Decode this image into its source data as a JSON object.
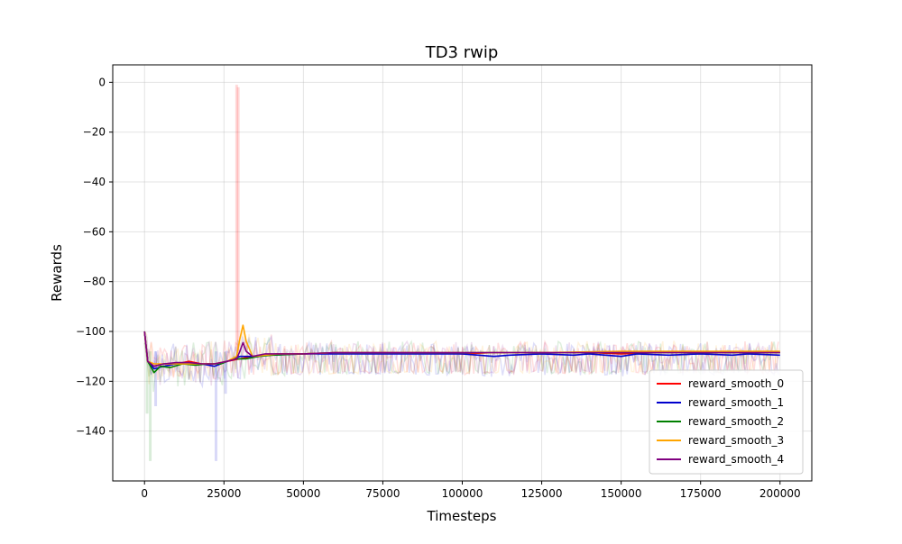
{
  "chart_data": {
    "type": "line",
    "title": "TD3 rwip",
    "xlabel": "Timesteps",
    "ylabel": "Rewards",
    "xlim": [
      -10000,
      210000
    ],
    "ylim": [
      -160,
      7
    ],
    "xticks": [
      0,
      25000,
      50000,
      75000,
      100000,
      125000,
      150000,
      175000,
      200000
    ],
    "xtick_labels": [
      "0",
      "25000",
      "50000",
      "75000",
      "100000",
      "125000",
      "150000",
      "175000",
      "200000"
    ],
    "yticks": [
      0,
      -20,
      -40,
      -60,
      -80,
      -100,
      -120,
      -140
    ],
    "ytick_labels": [
      "0",
      "−20",
      "−40",
      "−60",
      "−80",
      "−100",
      "−120",
      "−140"
    ],
    "grid": true,
    "legend_position": "lower-right",
    "series": [
      {
        "name": "reward_smooth_0",
        "color": "#ff0000",
        "x": [
          0,
          1000,
          3000,
          6000,
          10000,
          14000,
          18000,
          22000,
          26000,
          30000,
          34000,
          38000,
          42000,
          50000,
          60000,
          75000,
          90000,
          100000,
          110000,
          125000,
          140000,
          150000,
          160000,
          175000,
          190000,
          200000
        ],
        "y": [
          -100,
          -112,
          -114,
          -113,
          -113,
          -112,
          -113,
          -113,
          -112,
          -111,
          -110,
          -109.5,
          -109,
          -109,
          -108.5,
          -108.5,
          -108.5,
          -109,
          -108.5,
          -108.5,
          -108.5,
          -109,
          -108.5,
          -108.5,
          -108.5,
          -108.5
        ]
      },
      {
        "name": "reward_smooth_1",
        "color": "#0000cd",
        "x": [
          0,
          1000,
          3000,
          6000,
          10000,
          14000,
          18000,
          22000,
          26000,
          30000,
          34000,
          40000,
          50000,
          60000,
          75000,
          90000,
          100000,
          105000,
          110000,
          115000,
          125000,
          135000,
          140000,
          145000,
          150000,
          155000,
          165000,
          175000,
          185000,
          190000,
          200000
        ],
        "y": [
          -100,
          -112,
          -115,
          -114,
          -113,
          -113,
          -113,
          -114,
          -112,
          -110,
          -110,
          -109.5,
          -109,
          -109,
          -109,
          -109,
          -109,
          -109.5,
          -110,
          -109.5,
          -109,
          -109.5,
          -109,
          -109.5,
          -110,
          -109,
          -109.5,
          -109,
          -109.5,
          -109,
          -109.5
        ]
      },
      {
        "name": "reward_smooth_2",
        "color": "#008000",
        "x": [
          0,
          1000,
          3000,
          5000,
          8000,
          12000,
          16000,
          20000,
          24000,
          28000,
          32000,
          36000,
          40000,
          50000,
          60000,
          75000,
          90000,
          100000,
          125000,
          150000,
          175000,
          200000
        ],
        "y": [
          -100,
          -112,
          -116.5,
          -114,
          -114.5,
          -113,
          -113.5,
          -113,
          -113,
          -111,
          -111,
          -110,
          -109.5,
          -109,
          -108.5,
          -108.5,
          -108.5,
          -108.5,
          -108.5,
          -108.5,
          -108.5,
          -108.5
        ]
      },
      {
        "name": "reward_smooth_3",
        "color": "#ffa500",
        "x": [
          0,
          1000,
          3000,
          6000,
          10000,
          14000,
          18000,
          22000,
          26000,
          29000,
          30000,
          31000,
          32000,
          34000,
          38000,
          42000,
          50000,
          60000,
          75000,
          90000,
          100000,
          125000,
          150000,
          175000,
          200000
        ],
        "y": [
          -100,
          -112,
          -113,
          -113,
          -113,
          -113,
          -113,
          -113,
          -112,
          -110,
          -103,
          -97.5,
          -104,
          -110,
          -109.5,
          -109,
          -109,
          -108.5,
          -108.5,
          -108.5,
          -108.5,
          -108.5,
          -108,
          -108,
          -108
        ]
      },
      {
        "name": "reward_smooth_4",
        "color": "#800080",
        "x": [
          0,
          1000,
          3000,
          6000,
          10000,
          14000,
          18000,
          22000,
          26000,
          29000,
          30000,
          31000,
          32000,
          34000,
          38000,
          42000,
          50000,
          60000,
          75000,
          90000,
          100000,
          125000,
          150000,
          175000,
          200000
        ],
        "y": [
          -100,
          -112,
          -114,
          -113,
          -112.5,
          -112.5,
          -113,
          -113,
          -112,
          -111,
          -108,
          -104.5,
          -108,
          -110,
          -109,
          -109,
          -109,
          -108.5,
          -108.5,
          -108.5,
          -108.5,
          -108.5,
          -108.5,
          -108.5,
          -108.5
        ]
      }
    ]
  }
}
